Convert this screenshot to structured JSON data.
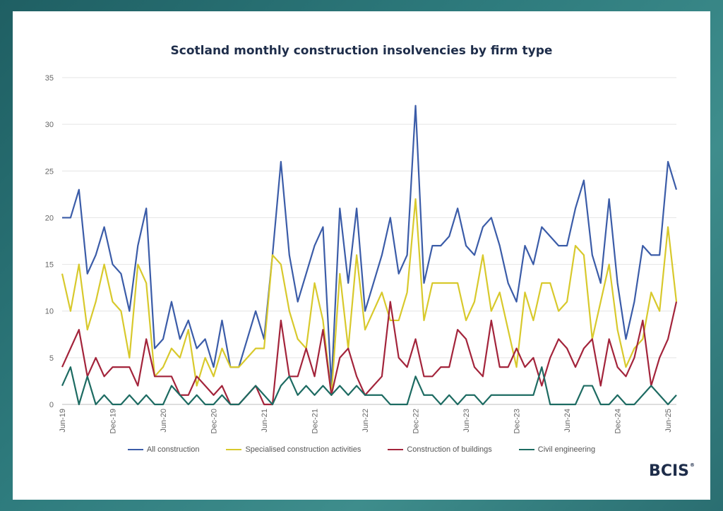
{
  "title": "Scotland monthly construction insolvencies by firm type",
  "logo": "BCIS",
  "logo_mark": "®",
  "chart_data": {
    "type": "line",
    "title": "Scotland monthly construction insolvencies by firm type",
    "xlabel": "",
    "ylabel": "",
    "ylim": [
      0,
      35
    ],
    "yticks": [
      0,
      5,
      10,
      15,
      20,
      25,
      30,
      35
    ],
    "grid": true,
    "legend_position": "bottom",
    "x_tick_labels": [
      "Jun-19",
      "Dec-19",
      "Jun-20",
      "Dec-20",
      "Jun-21",
      "Dec-21",
      "Jun-22",
      "Dec-22",
      "Jun-23",
      "Dec-23",
      "Jun-24",
      "Dec-24",
      "Jun-25"
    ],
    "x_start": "Jun-19",
    "x_end": "Jun-25",
    "series": [
      {
        "name": "All construction",
        "color": "#3b5ca8",
        "values": [
          20,
          20,
          23,
          14,
          16,
          19,
          15,
          14,
          10,
          17,
          21,
          6,
          7,
          11,
          7,
          9,
          6,
          7,
          4,
          9,
          4,
          4,
          7,
          10,
          7,
          16,
          26,
          16,
          11,
          14,
          17,
          19,
          2,
          21,
          13,
          21,
          10,
          13,
          16,
          20,
          14,
          16,
          32,
          13,
          17,
          17,
          18,
          21,
          17,
          16,
          19,
          20,
          17,
          13,
          11,
          17,
          15,
          19,
          18,
          17,
          17,
          21,
          24,
          16,
          13,
          22,
          13,
          7,
          11,
          17,
          16,
          16,
          26,
          23
        ]
      },
      {
        "name": "Specialised construction activities",
        "color": "#d8c92c",
        "values": [
          14,
          10,
          15,
          8,
          11,
          15,
          11,
          10,
          5,
          15,
          13,
          3,
          4,
          6,
          5,
          8,
          2,
          5,
          3,
          6,
          4,
          4,
          5,
          6,
          6,
          16,
          15,
          10,
          7,
          6,
          13,
          9,
          1,
          14,
          6,
          16,
          8,
          10,
          12,
          9,
          9,
          12,
          22,
          9,
          13,
          13,
          13,
          13,
          9,
          11,
          16,
          10,
          12,
          8,
          4,
          12,
          9,
          13,
          13,
          10,
          11,
          17,
          16,
          7,
          11,
          15,
          8,
          4,
          6,
          7,
          12,
          10,
          19,
          11
        ]
      },
      {
        "name": "Construction of buildings",
        "color": "#a3243b",
        "values": [
          4,
          6,
          8,
          3,
          5,
          3,
          4,
          4,
          4,
          2,
          7,
          3,
          3,
          3,
          1,
          1,
          3,
          2,
          1,
          2,
          0,
          0,
          1,
          2,
          0,
          0,
          9,
          3,
          3,
          6,
          3,
          8,
          1,
          5,
          6,
          3,
          1,
          2,
          3,
          11,
          5,
          4,
          7,
          3,
          3,
          4,
          4,
          8,
          7,
          4,
          3,
          9,
          4,
          4,
          6,
          4,
          5,
          2,
          5,
          7,
          6,
          4,
          6,
          7,
          2,
          7,
          4,
          3,
          5,
          9,
          2,
          5,
          7,
          11
        ]
      },
      {
        "name": "Civil engineering",
        "color": "#1d6b62",
        "values": [
          2,
          4,
          0,
          3,
          0,
          1,
          0,
          0,
          1,
          0,
          1,
          0,
          0,
          2,
          1,
          0,
          1,
          0,
          0,
          1,
          0,
          0,
          1,
          2,
          1,
          0,
          2,
          3,
          1,
          2,
          1,
          2,
          1,
          2,
          1,
          2,
          1,
          1,
          1,
          0,
          0,
          0,
          3,
          1,
          1,
          0,
          1,
          0,
          1,
          1,
          0,
          1,
          1,
          1,
          1,
          1,
          1,
          4,
          0,
          0,
          0,
          0,
          2,
          2,
          0,
          0,
          1,
          0,
          0,
          1,
          2,
          1,
          0,
          1
        ]
      }
    ]
  }
}
